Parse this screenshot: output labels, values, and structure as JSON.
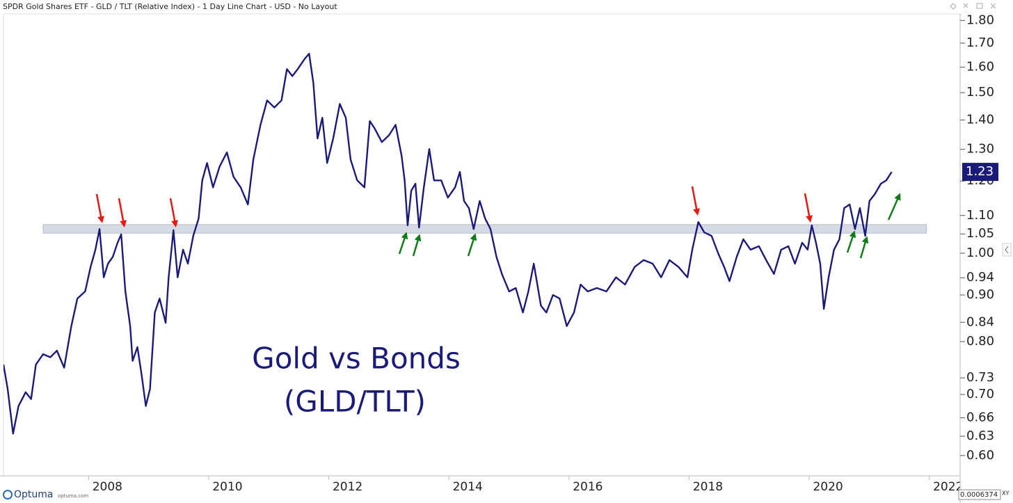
{
  "chart_data": {
    "type": "line",
    "title": "SPDR Gold Shares ETF - GLD / TLT (Relative Index) - 1 Day Line Chart - USD - No Layout",
    "annotations": [
      "Gold vs Bonds",
      "(GLD/TLT)"
    ],
    "last_label": "1.23",
    "brand": "Optuma",
    "brand_url": "optuma.com",
    "cursor_value": "0.0006374",
    "cursor_mode": "XY",
    "log_scale": true,
    "grid": false,
    "xlim": [
      2006.27,
      2022.2
    ],
    "xticks": [
      2008,
      2010,
      2012,
      2014,
      2016,
      2018,
      2020,
      2022
    ],
    "ylim": [
      0.57,
      1.83
    ],
    "yticks": [
      {
        "value": 1.8,
        "label": "1.80"
      },
      {
        "value": 1.7,
        "label": "1.70"
      },
      {
        "value": 1.6,
        "label": "1.60"
      },
      {
        "value": 1.5,
        "label": "1.50"
      },
      {
        "value": 1.4,
        "label": "1.40"
      },
      {
        "value": 1.3,
        "label": "1.30"
      },
      {
        "value": 1.2,
        "label": "1.20"
      },
      {
        "value": 1.1,
        "label": "1.10"
      },
      {
        "value": 1.05,
        "label": "1.05"
      },
      {
        "value": 1.0,
        "label": "1.00"
      },
      {
        "value": 0.94,
        "label": "0.94"
      },
      {
        "value": 0.9,
        "label": "0.90"
      },
      {
        "value": 0.84,
        "label": "0.84"
      },
      {
        "value": 0.8,
        "label": "0.80"
      },
      {
        "value": 0.73,
        "label": "0.73"
      },
      {
        "value": 0.7,
        "label": "0.70"
      },
      {
        "value": 0.66,
        "label": "0.66"
      },
      {
        "value": 0.63,
        "label": "0.63"
      },
      {
        "value": 0.6,
        "label": "0.60"
      }
    ],
    "band": {
      "x": [
        2006.93,
        2021.64
      ],
      "y": [
        1.052,
        1.075
      ],
      "color": "#d6dae4"
    },
    "x": [
      2006.27,
      2006.34,
      2006.43,
      2006.52,
      2006.64,
      2006.73,
      2006.81,
      2006.93,
      2007.05,
      2007.16,
      2007.28,
      2007.4,
      2007.5,
      2007.63,
      2007.72,
      2007.8,
      2007.87,
      2007.94,
      2008.01,
      2008.09,
      2008.17,
      2008.23,
      2008.3,
      2008.38,
      2008.42,
      2008.5,
      2008.57,
      2008.64,
      2008.71,
      2008.79,
      2008.87,
      2008.97,
      2009.02,
      2009.1,
      2009.17,
      2009.26,
      2009.34,
      2009.43,
      2009.52,
      2009.58,
      2009.66,
      2009.76,
      2009.87,
      2009.99,
      2010.1,
      2010.22,
      2010.34,
      2010.43,
      2010.55,
      2010.66,
      2010.78,
      2010.9,
      2010.99,
      2011.08,
      2011.17,
      2011.29,
      2011.36,
      2011.43,
      2011.5,
      2011.58,
      2011.66,
      2011.76,
      2011.87,
      2011.97,
      2012.05,
      2012.16,
      2012.28,
      2012.37,
      2012.45,
      2012.57,
      2012.69,
      2012.8,
      2012.9,
      2012.95,
      2013.0,
      2013.06,
      2013.13,
      2013.19,
      2013.27,
      2013.36,
      2013.44,
      2013.56,
      2013.67,
      2013.79,
      2013.87,
      2013.94,
      2014.02,
      2014.1,
      2014.2,
      2014.29,
      2014.38,
      2014.48,
      2014.57,
      2014.69,
      2014.8,
      2014.92,
      2015.01,
      2015.1,
      2015.22,
      2015.31,
      2015.42,
      2015.53,
      2015.65,
      2015.77,
      2015.88,
      2016.0,
      2016.15,
      2016.31,
      2016.47,
      2016.62,
      2016.78,
      2016.93,
      2017.08,
      2017.22,
      2017.36,
      2017.51,
      2017.66,
      2017.74,
      2017.84,
      2017.94,
      2018.06,
      2018.17,
      2018.27,
      2018.36,
      2018.48,
      2018.59,
      2018.71,
      2018.85,
      2018.97,
      2019.1,
      2019.22,
      2019.34,
      2019.45,
      2019.57,
      2019.66,
      2019.73,
      2019.8,
      2019.87,
      2019.93,
      2020.01,
      2020.1,
      2020.19,
      2020.27,
      2020.36,
      2020.45,
      2020.53,
      2020.62,
      2020.69,
      2020.78,
      2020.88,
      2020.97,
      2021.06
    ],
    "series": [
      {
        "name": "GLD / TLT",
        "color": "#1a1a7a",
        "values": [
          0.755,
          0.71,
          0.634,
          0.68,
          0.704,
          0.692,
          0.755,
          0.775,
          0.769,
          0.782,
          0.749,
          0.832,
          0.892,
          0.908,
          0.966,
          1.009,
          1.063,
          0.941,
          0.974,
          0.991,
          1.027,
          1.049,
          0.908,
          0.832,
          0.762,
          0.789,
          0.736,
          0.68,
          0.71,
          0.861,
          0.892,
          0.839,
          0.941,
          1.06,
          0.941,
          1.009,
          0.974,
          1.045,
          1.092,
          1.202,
          1.256,
          1.181,
          1.245,
          1.29,
          1.213,
          1.181,
          1.131,
          1.267,
          1.383,
          1.471,
          1.445,
          1.471,
          1.592,
          1.564,
          1.592,
          1.635,
          1.655,
          1.537,
          1.336,
          1.408,
          1.256,
          1.336,
          1.458,
          1.408,
          1.267,
          1.202,
          1.181,
          1.396,
          1.371,
          1.324,
          1.347,
          1.383,
          1.278,
          1.202,
          1.073,
          1.171,
          1.192,
          1.067,
          1.181,
          1.301,
          1.202,
          1.202,
          1.151,
          1.181,
          1.228,
          1.141,
          1.121,
          1.063,
          1.141,
          1.092,
          1.063,
          0.991,
          0.949,
          0.908,
          0.916,
          0.861,
          0.908,
          0.974,
          0.876,
          0.861,
          0.9,
          0.892,
          0.832,
          0.861,
          0.924,
          0.908,
          0.916,
          0.908,
          0.941,
          0.924,
          0.966,
          0.983,
          0.974,
          0.941,
          0.983,
          0.966,
          0.941,
          1.009,
          1.082,
          1.054,
          1.045,
          1.0,
          0.966,
          0.932,
          0.991,
          1.036,
          1.009,
          1.018,
          0.983,
          0.949,
          1.009,
          1.018,
          0.974,
          1.027,
          1.009,
          1.073,
          1.027,
          0.974,
          0.869,
          0.941,
          1.009,
          1.036,
          1.121,
          1.131,
          1.063,
          1.121,
          1.045,
          1.141,
          1.161,
          1.192,
          1.202,
          1.228
        ]
      }
    ]
  }
}
